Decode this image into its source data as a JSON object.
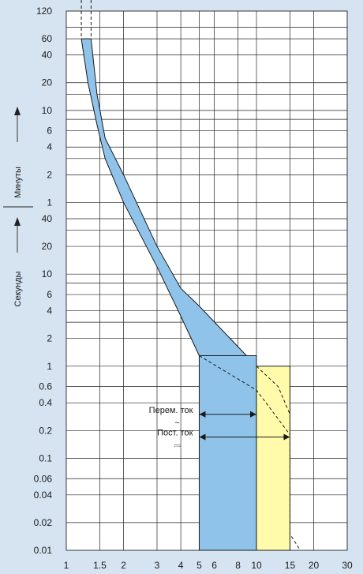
{
  "chart_data": {
    "type": "area",
    "title": "",
    "x_axis": {
      "scale": "log",
      "range": [
        1,
        30
      ],
      "ticks": [
        1,
        1.5,
        2,
        3,
        4,
        5,
        6,
        8,
        10,
        15,
        20,
        30
      ],
      "tick_labels": [
        "1",
        "1.5",
        "2",
        "3",
        "4",
        "5",
        "6",
        "8",
        "10",
        "15",
        "20",
        "30"
      ]
    },
    "y_axis": {
      "scale": "log",
      "units": {
        "minutes": {
          "label": "Минуты",
          "ticks": [
            1,
            2,
            4,
            6,
            10,
            20,
            40,
            60,
            120
          ],
          "tick_labels": [
            "1",
            "2",
            "4",
            "6",
            "10",
            "20",
            "40",
            "60",
            "120"
          ]
        },
        "seconds": {
          "label": "Секунды",
          "ticks": [
            0.01,
            0.02,
            0.04,
            0.06,
            0.1,
            0.2,
            0.4,
            0.6,
            1,
            2,
            4,
            6,
            10,
            20,
            40
          ],
          "tick_labels": [
            "0.01",
            "0.02",
            "0.04",
            "0.06",
            "0.1",
            "0.2",
            "0.4",
            "0.6",
            "1",
            "2",
            "4",
            "6",
            "10",
            "20",
            "40"
          ]
        }
      }
    },
    "series": [
      {
        "key": "thermal_band",
        "color": "#8fc3ea",
        "lower_boundary": [
          [
            1.2,
            3600
          ],
          [
            1.3,
            1200
          ],
          [
            1.45,
            420
          ],
          [
            1.6,
            180
          ],
          [
            2.0,
            60
          ],
          [
            3.0,
            12
          ],
          [
            4.0,
            3.5
          ],
          [
            5.0,
            1.3
          ]
        ],
        "upper_boundary": [
          [
            1.35,
            3600
          ],
          [
            1.45,
            900
          ],
          [
            1.6,
            300
          ],
          [
            2.0,
            120
          ],
          [
            3.0,
            20
          ],
          [
            4.0,
            7
          ],
          [
            5.0,
            4.5
          ],
          [
            10.0,
            1.0
          ]
        ]
      },
      {
        "key": "magnetic_ac",
        "color": "#8fc3ea",
        "x_range": [
          5,
          10
        ],
        "y_range": [
          0.01,
          1.3
        ]
      },
      {
        "key": "magnetic_dc",
        "color": "#fffbaa",
        "x_range": [
          10,
          15
        ],
        "y_range": [
          0.01,
          1.0
        ],
        "dashed_extension": [
          [
            10,
            1.0
          ],
          [
            13,
            0.6
          ],
          [
            15,
            0.3
          ],
          [
            15,
            0.015
          ],
          [
            17,
            0.01
          ]
        ]
      }
    ],
    "dashed_lines": [
      [
        [
          5,
          1.3
        ],
        [
          10,
          0.55
        ],
        [
          15,
          0.18
        ]
      ]
    ],
    "annotations": [
      {
        "key": "ac",
        "text": "Перем. ток",
        "symbol": "~",
        "arrow": [
          5,
          10
        ],
        "y": 0.3
      },
      {
        "key": "dc",
        "text": "Пост. ток",
        "symbol": "⎓",
        "arrow": [
          5,
          15
        ],
        "y": 0.17
      }
    ],
    "grid": true
  }
}
